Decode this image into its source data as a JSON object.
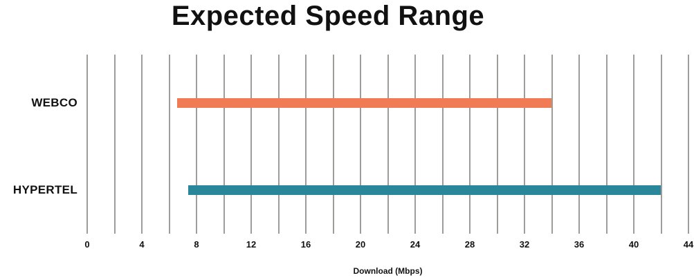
{
  "chart_data": {
    "type": "bar",
    "variant": "horizontal-range",
    "title": "Expected Speed Range",
    "categories": [
      "WEBCO",
      "HYPERTEL"
    ],
    "series": [
      {
        "name": "WEBCO",
        "range": [
          6.6,
          34
        ],
        "color": "#f17b54"
      },
      {
        "name": "HYPERTEL",
        "range": [
          7.4,
          42
        ],
        "color": "#2a8799"
      }
    ],
    "xlabel": "Download (Mbps)",
    "ylabel": "",
    "xlim": [
      0,
      44
    ],
    "x_major_ticks": [
      0,
      4,
      8,
      12,
      16,
      20,
      24,
      28,
      32,
      36,
      40,
      44
    ],
    "x_minor_step": 2,
    "grid": true,
    "legend": false,
    "gridline_color": "#9e9c99",
    "text_color": "#111111",
    "background_color": "#ffffff"
  }
}
